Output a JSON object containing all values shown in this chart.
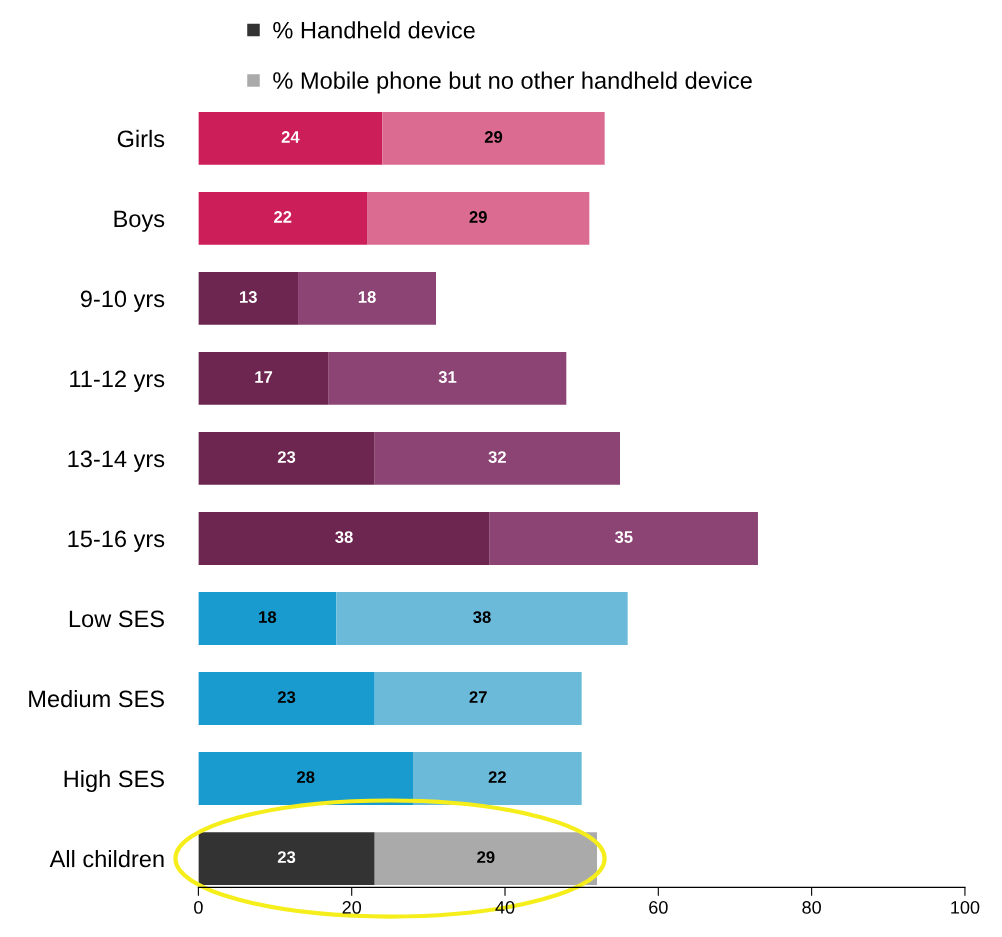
{
  "chart_data": {
    "type": "bar",
    "orientation": "horizontal",
    "stacked": true,
    "data_labels": true,
    "legend": "top",
    "grid": false,
    "categories": [
      "Girls",
      "Boys",
      "9-10 yrs",
      "11-12 yrs",
      "13-14 yrs",
      "15-16 yrs",
      "Low SES",
      "Medium SES",
      "High SES",
      "All children"
    ],
    "series": [
      {
        "name": "% Handheld device",
        "color": "#333333",
        "values": [
          24,
          22,
          13,
          17,
          23,
          38,
          18,
          23,
          28,
          23
        ],
        "colors": [
          "#cc1f5a",
          "#cc1f5a",
          "#6d2650",
          "#6d2650",
          "#6d2650",
          "#6d2650",
          "#1a9bcf",
          "#1a9bcf",
          "#1a9bcf",
          "#333333"
        ]
      },
      {
        "name": "% Mobile phone but no other handheld device",
        "color": "#aaaaaa",
        "values": [
          29,
          29,
          18,
          31,
          32,
          35,
          38,
          27,
          22,
          29
        ],
        "colors": [
          "#db6b91",
          "#db6b91",
          "#8b4474",
          "#8b4474",
          "#8b4474",
          "#8b4474",
          "#6bbad9",
          "#6bbad9",
          "#6bbad9",
          "#aaaaaa"
        ]
      }
    ],
    "xlim": [
      0,
      100
    ],
    "xticks": [
      0,
      20,
      40,
      60,
      80,
      100
    ]
  }
}
